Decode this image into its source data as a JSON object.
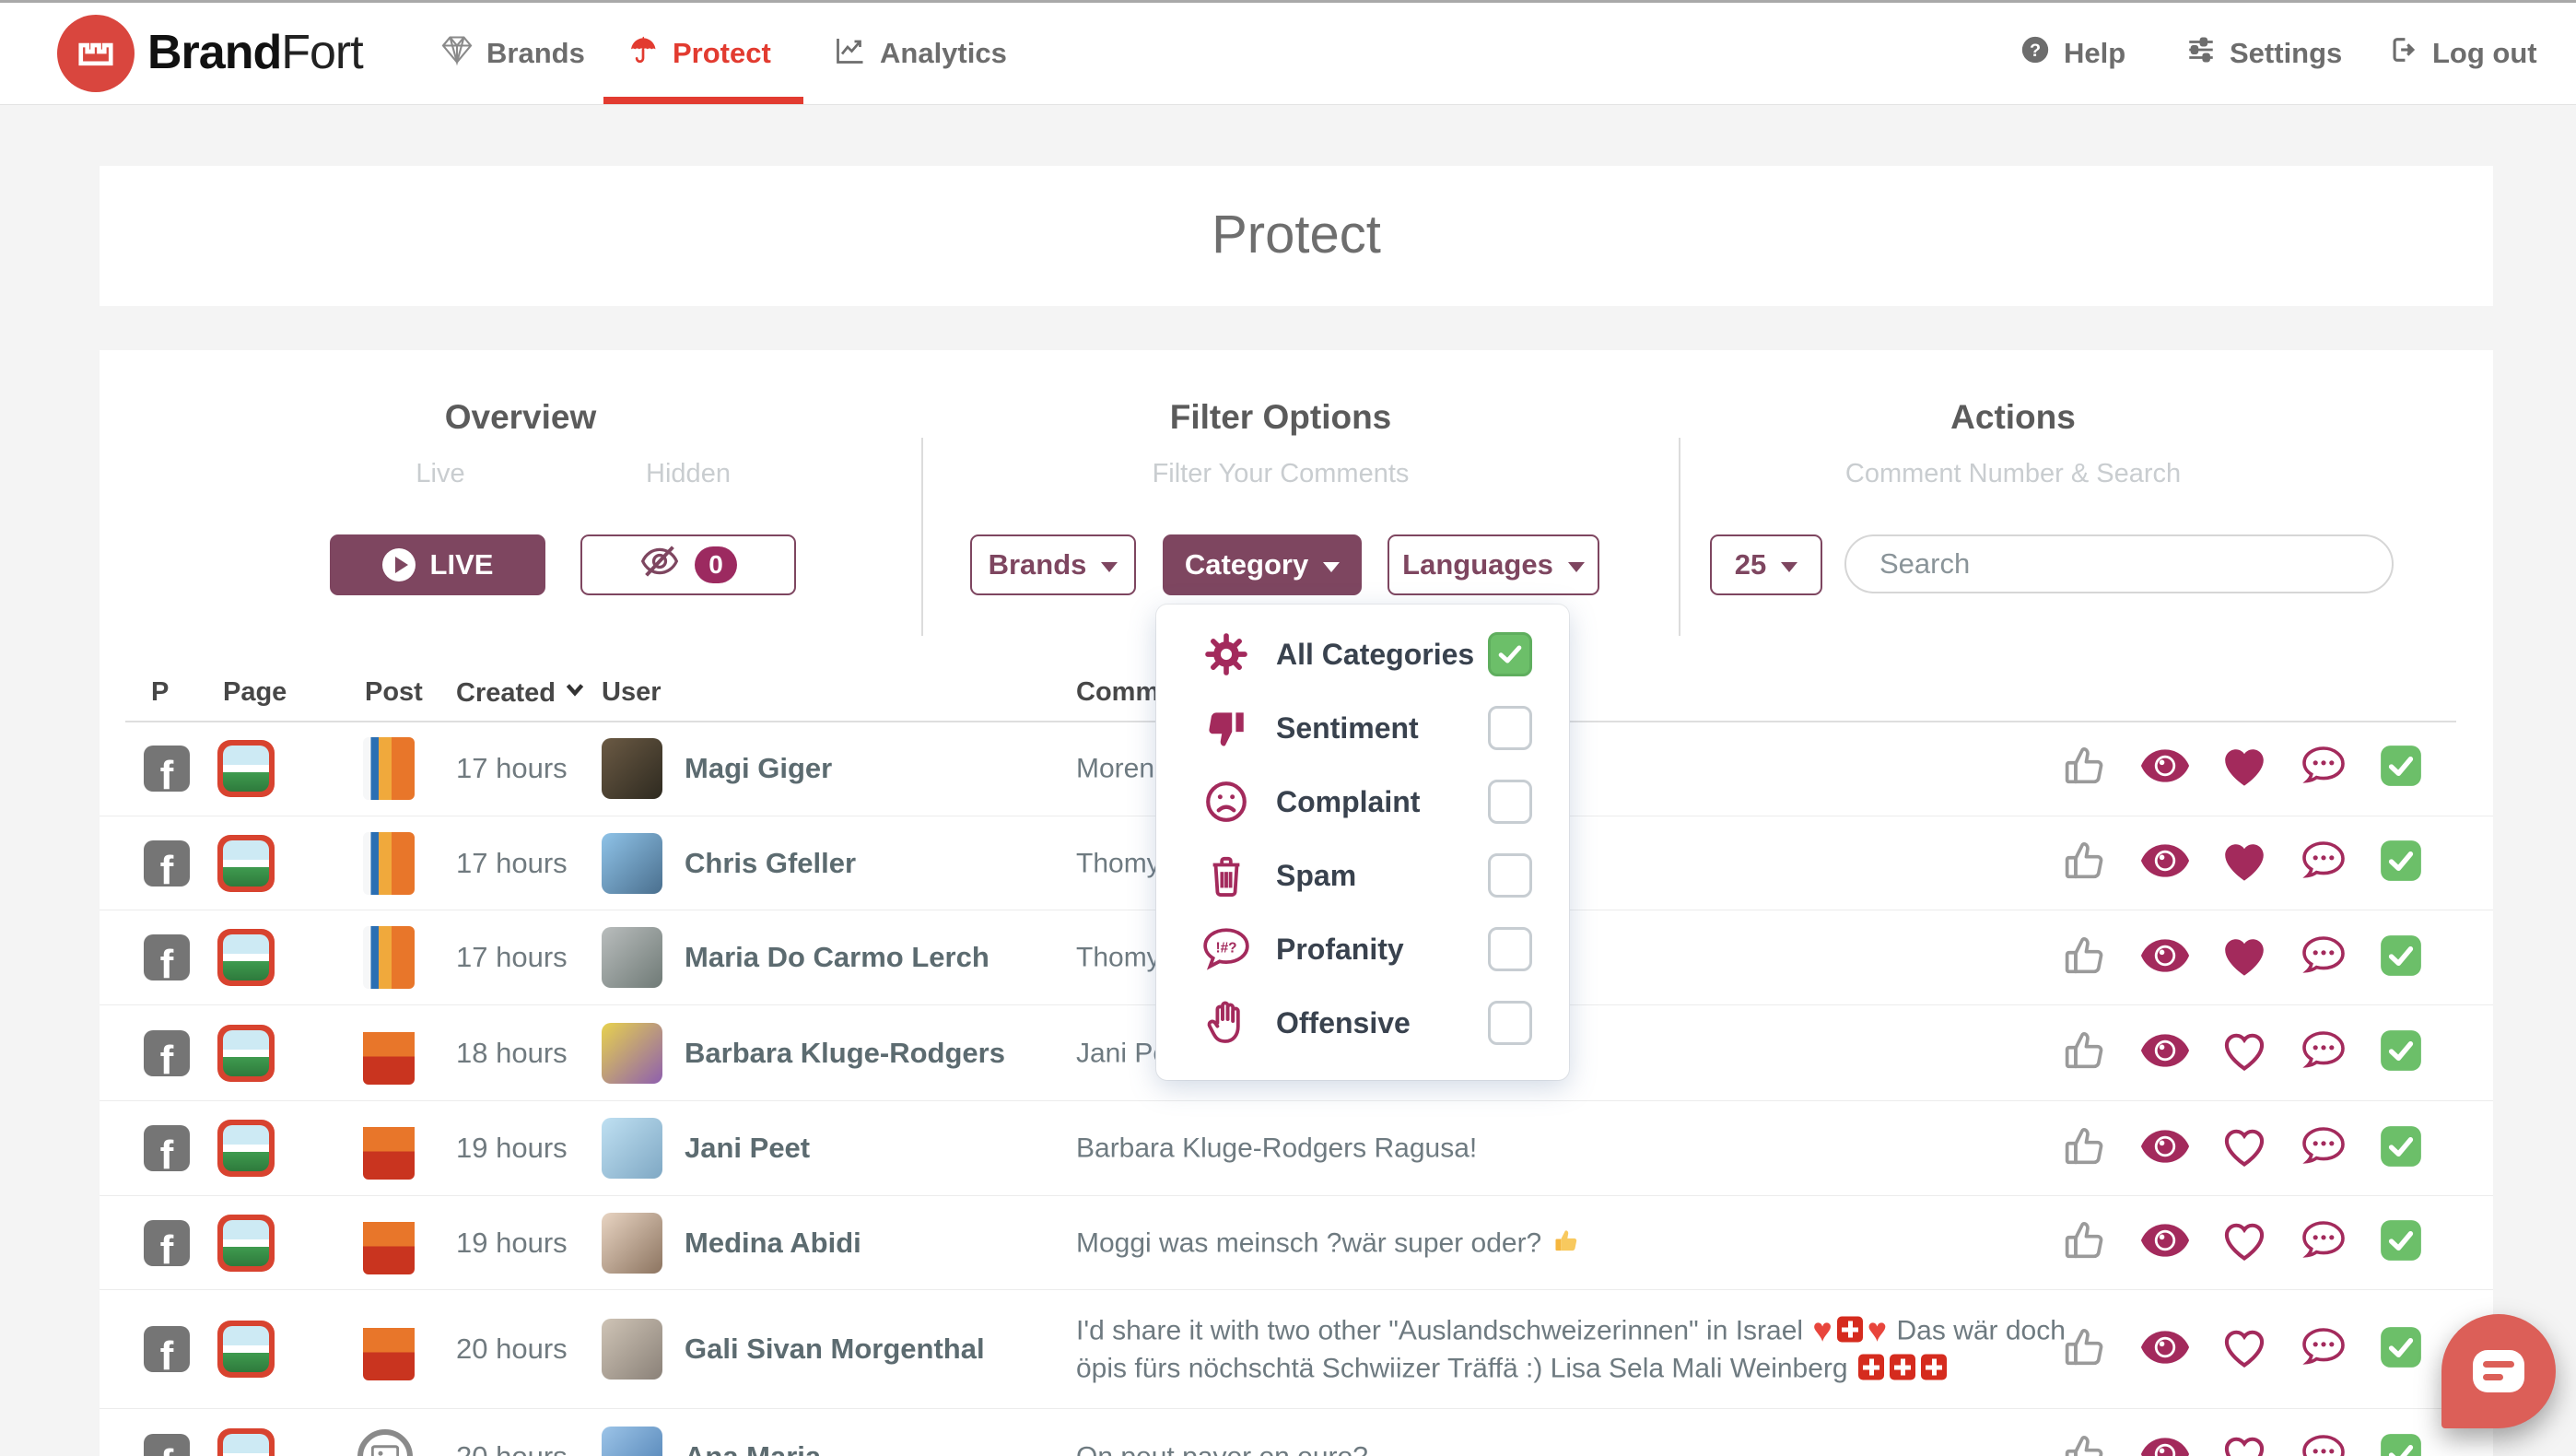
{
  "nav": {
    "brand": {
      "bold": "Brand",
      "light": "Fort"
    },
    "items": [
      {
        "label": "Brands"
      },
      {
        "label": "Protect",
        "active": true
      },
      {
        "label": "Analytics"
      }
    ],
    "right": [
      {
        "label": "Help"
      },
      {
        "label": "Settings"
      },
      {
        "label": "Log out"
      }
    ]
  },
  "page": {
    "title": "Protect"
  },
  "panel": {
    "overview": {
      "title": "Overview",
      "live_label": "Live",
      "hidden_label": "Hidden",
      "live_button": "LIVE",
      "hidden_count": "0"
    },
    "filters": {
      "title": "Filter Options",
      "subtitle": "Filter Your Comments",
      "brands_button": "Brands",
      "category_button": "Category",
      "languages_button": "Languages"
    },
    "actions": {
      "title": "Actions",
      "subtitle": "Comment Number & Search",
      "per_page": "25",
      "search_placeholder": "Search"
    }
  },
  "category_menu": {
    "items": [
      {
        "icon": "gear-icon",
        "label": "All Categories",
        "checked": true
      },
      {
        "icon": "thumbs-down-icon",
        "label": "Sentiment",
        "checked": false
      },
      {
        "icon": "sad-face-icon",
        "label": "Complaint",
        "checked": false
      },
      {
        "icon": "trash-icon",
        "label": "Spam",
        "checked": false
      },
      {
        "icon": "profanity-bubble-icon",
        "label": "Profanity",
        "checked": false
      },
      {
        "icon": "hand-stop-icon",
        "label": "Offensive",
        "checked": false
      }
    ]
  },
  "table": {
    "headers": [
      "P",
      "Page",
      "Post",
      "Created",
      "User",
      "Comment"
    ],
    "rows": [
      {
        "created": "17 hours",
        "user": "Magi Giger",
        "comment": "Morenk",
        "heart": "filled",
        "post": "ovomaltine",
        "avatar": [
          "#6b5a44",
          "#2e2a20"
        ],
        "height": 104
      },
      {
        "created": "17 hours",
        "user": "Chris Gfeller",
        "comment": "Thomy",
        "heart": "filled",
        "post": "ovomaltine",
        "avatar": [
          "#8fc3e8",
          "#4a6f8e"
        ],
        "height": 102
      },
      {
        "created": "17 hours",
        "user": "Maria Do Carmo Lerch",
        "comment": "Thomy",
        "heart": "filled",
        "post": "ovomaltine",
        "avatar": [
          "#b9bdbd",
          "#6f7a76"
        ],
        "height": 103
      },
      {
        "created": "18 hours",
        "user": "Barbara Kluge-Rodgers",
        "comment": "Jani Pee",
        "heart": "outline",
        "post": "winabox",
        "avatar": [
          "#e7d24e",
          "#8e5fae"
        ],
        "height": 104
      },
      {
        "created": "19 hours",
        "user": "Jani Peet",
        "comment": "Barbara Kluge-Rodgers Ragusa!",
        "heart": "outline",
        "post": "winabox",
        "avatar": [
          "#bfe0f2",
          "#7fa8c4"
        ],
        "height": 103
      },
      {
        "created": "19 hours",
        "user": "Medina Abidi",
        "comment": "Moggi was meinsch ?wär super oder? 👍",
        "heart": "outline",
        "post": "winabox",
        "avatar": [
          "#e8d4c2",
          "#8c7460"
        ],
        "height": 102
      },
      {
        "created": "20 hours",
        "user": "Gali Sivan Morgenthal",
        "comment": "I'd share it with two other \"Auslandschweizerinnen\" in Israel ❤️🇨🇭❤️ Das wär doch öpis fürs nöchschtä Schwiizer Träffä :) Lisa Sela Mali Weinberg 🇨🇭🇨🇭🇨🇭",
        "heart": "outline",
        "post": "winabox",
        "avatar": [
          "#cfc4b6",
          "#8a8178"
        ],
        "height": 129
      },
      {
        "created": "20 hours",
        "user": "Ana Maria",
        "comment": "On peut payer en euro?",
        "heart": "outline",
        "post": "placeholder",
        "avatar": [
          "#9cc4e8",
          "#4a7cb0"
        ],
        "height": 104,
        "speech_dot": true
      }
    ]
  },
  "colors": {
    "plum": "#7e4660",
    "icon_pink": "#a32a5c",
    "accent_red": "#e23b30",
    "green": "#6cbf69",
    "chat_salmon": "#dc5f58"
  }
}
